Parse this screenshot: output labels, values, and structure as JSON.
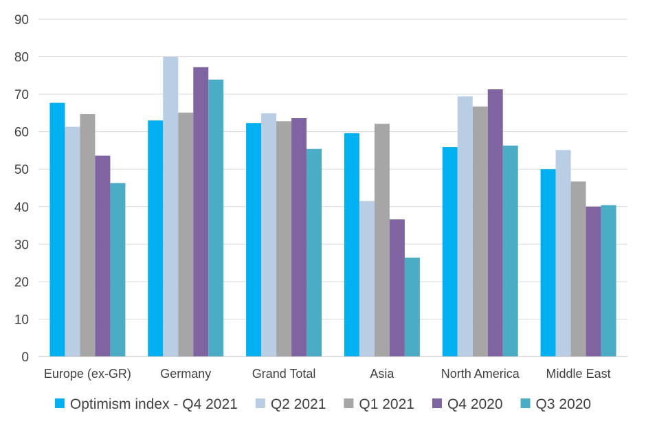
{
  "chart_data": {
    "type": "bar",
    "title": "",
    "xlabel": "",
    "ylabel": "",
    "ylim": [
      0,
      90
    ],
    "yticks": [
      0,
      10,
      20,
      30,
      40,
      50,
      60,
      70,
      80,
      90
    ],
    "grid": true,
    "legend_position": "bottom",
    "categories": [
      "Europe (ex-GR)",
      "Germany",
      "Grand Total",
      "Asia",
      "North America",
      "Middle East"
    ],
    "series": [
      {
        "name": "Optimism index - Q4 2021",
        "color": "#00b0f0",
        "values": [
          67.7,
          63.0,
          62.3,
          59.6,
          55.9,
          50.0
        ]
      },
      {
        "name": "Q2 2021",
        "color": "#b9cde5",
        "values": [
          61.3,
          80.0,
          64.9,
          41.5,
          69.4,
          55.1
        ]
      },
      {
        "name": "Q1 2021",
        "color": "#a6a6a6",
        "values": [
          64.7,
          65.1,
          62.8,
          62.1,
          66.7,
          46.7
        ]
      },
      {
        "name": "Q4 2020",
        "color": "#8064a2",
        "values": [
          53.6,
          77.2,
          63.6,
          36.6,
          71.3,
          40.0
        ]
      },
      {
        "name": "Q3 2020",
        "color": "#4bacc6",
        "values": [
          46.3,
          73.9,
          55.4,
          26.4,
          56.3,
          40.4
        ]
      }
    ]
  }
}
